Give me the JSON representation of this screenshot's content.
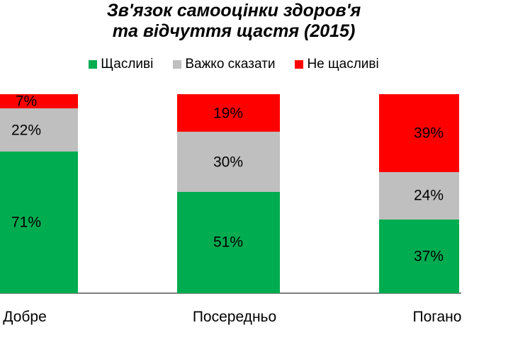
{
  "chart_data": {
    "type": "bar",
    "stacked": true,
    "title": "Зв'язок самооцінки здоров'я та відчуття щастя (2015)",
    "title_lines": [
      "Зв'язок самооцінки здоров'я",
      "та відчуття щастя (2015)"
    ],
    "legend_position": "top",
    "categories": [
      "Добре",
      "Посередньо",
      "Погано"
    ],
    "xlabel": "",
    "ylabel": "",
    "unit": "%",
    "ylim": [
      0,
      100
    ],
    "grid": false,
    "series": [
      {
        "name": "Щасливі",
        "color": "#00AC50",
        "values": [
          71,
          51,
          37
        ],
        "labels": [
          "71%",
          "51%",
          "37%"
        ]
      },
      {
        "name": "Важко сказати",
        "color": "#BFBFBF",
        "values": [
          22,
          30,
          24
        ],
        "labels": [
          "22%",
          "30%",
          "24%"
        ]
      },
      {
        "name": "Не щасливі",
        "color": "#FF0000",
        "values": [
          7,
          19,
          39
        ],
        "labels": [
          "7%",
          "19%",
          "39%"
        ]
      }
    ],
    "axis_line_color": "#7F7F7F",
    "text_color": "#000000",
    "background_color": "#FFFFFF"
  }
}
